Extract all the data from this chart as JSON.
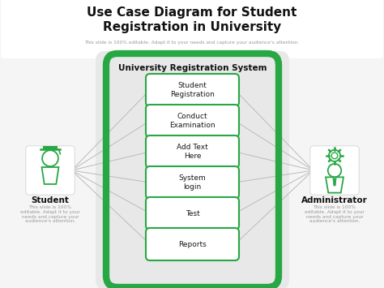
{
  "title_line1": "Use Case Diagram for Student",
  "title_line2": "Registration in University",
  "subtitle": "This slide is 100% editable. Adapt it to your needs and capture your audience's attention.",
  "bg_color": "#f5f5f5",
  "system_label": "University Registration System",
  "system_bg_color": "#e8e8e8",
  "system_border_color": "#27a844",
  "use_cases": [
    "Student\nRegistration",
    "Conduct\nExamination",
    "Add Text\nHere",
    "System\nlogin",
    "Test",
    "Reports"
  ],
  "uc_box_color": "#ffffff",
  "uc_border_color": "#27a844",
  "uc_text_color": "#1a1a1a",
  "actor_left_label": "Student",
  "actor_right_label": "Administrator",
  "actor_sub": "This slide is 100%\neditable. Adapt it to your\nneeds and capture your\naudience's attention.",
  "line_color": "#bbbbbb",
  "green": "#27a844",
  "title_color": "#111111",
  "subtitle_color": "#999999",
  "white": "#ffffff"
}
